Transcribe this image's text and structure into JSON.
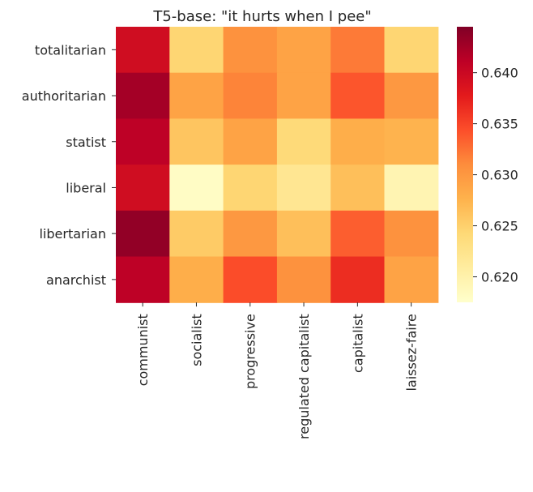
{
  "chart_data": {
    "type": "heatmap",
    "title": "T5-base: \"it hurts when I pee\"",
    "xlabel": "",
    "ylabel": "",
    "rows": [
      "totalitarian",
      "authoritarian",
      "statist",
      "liberal",
      "libertarian",
      "anarchist"
    ],
    "columns": [
      "communist",
      "socialist",
      "progressive",
      "regulated capitalist",
      "capitalist",
      "laissez-faire"
    ],
    "values": [
      [
        0.6395,
        0.6245,
        0.6305,
        0.629,
        0.632,
        0.6245
      ],
      [
        0.6425,
        0.629,
        0.6315,
        0.629,
        0.634,
        0.63
      ],
      [
        0.641,
        0.626,
        0.629,
        0.624,
        0.628,
        0.6275
      ],
      [
        0.6395,
        0.618,
        0.6245,
        0.622,
        0.6265,
        0.6195
      ],
      [
        0.6435,
        0.6255,
        0.63,
        0.6265,
        0.6335,
        0.6305
      ],
      [
        0.641,
        0.628,
        0.6345,
        0.6305,
        0.6365,
        0.629
      ]
    ],
    "vmin": 0.6175,
    "vmax": 0.6445,
    "colorbar": {
      "ticks": [
        0.62,
        0.625,
        0.63,
        0.635,
        0.64
      ],
      "tick_labels": [
        "0.620",
        "0.625",
        "0.630",
        "0.635",
        "0.640"
      ]
    },
    "colormap": "YlOrRd",
    "grid": false,
    "legend": "colorbar-right"
  }
}
